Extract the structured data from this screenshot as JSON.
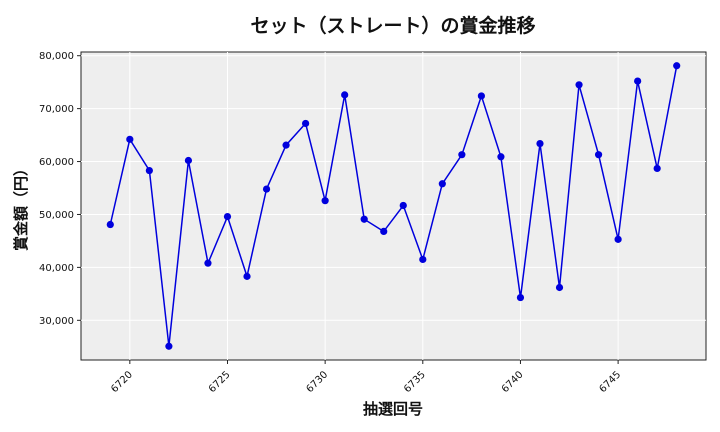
{
  "chart_data": {
    "type": "line",
    "title": "セット（ストレート）の賞金推移",
    "xlabel": "抽選回号",
    "ylabel": "賞金額（円）",
    "x": [
      6719,
      6720,
      6721,
      6722,
      6723,
      6724,
      6725,
      6726,
      6727,
      6728,
      6729,
      6730,
      6731,
      6732,
      6733,
      6734,
      6735,
      6736,
      6737,
      6738,
      6739,
      6740,
      6741,
      6742,
      6743,
      6744,
      6745,
      6746,
      6747,
      6748
    ],
    "values": [
      48100,
      64200,
      58300,
      25100,
      60200,
      40800,
      49600,
      38300,
      54800,
      63100,
      67200,
      52600,
      72600,
      49100,
      46800,
      51700,
      41500,
      55800,
      61300,
      72400,
      60900,
      34300,
      63400,
      36200,
      74500,
      61300,
      45300,
      75200,
      58700,
      78100
    ],
    "xticks": [
      6720,
      6725,
      6730,
      6735,
      6740,
      6745
    ],
    "xtick_labels": [
      "6720",
      "6725",
      "6730",
      "6735",
      "6740",
      "6745"
    ],
    "yticks": [
      30000,
      40000,
      50000,
      60000,
      70000,
      80000
    ],
    "ytick_labels": [
      "30,000",
      "40,000",
      "50,000",
      "60,000",
      "70,000",
      "80,000"
    ],
    "xlim": [
      6717.5,
      6749.5
    ],
    "ylim": [
      22500,
      80700
    ],
    "grid": true,
    "colors": {
      "line": "#0000dd",
      "marker": "#0000dd",
      "plot_bg": "#eeeeee",
      "grid": "#ffffff"
    }
  }
}
